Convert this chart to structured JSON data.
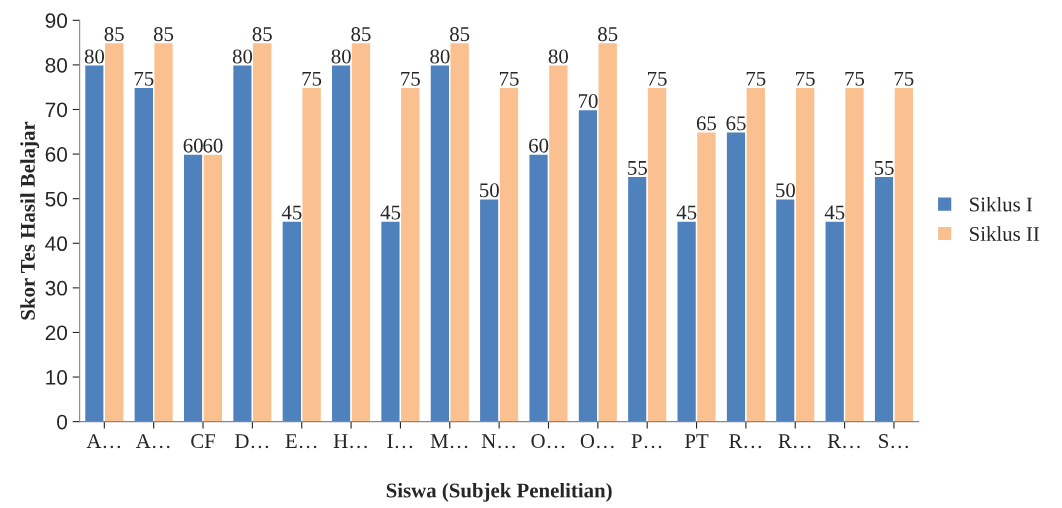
{
  "chart_data": {
    "type": "bar",
    "xlabel": "Siswa (Subjek Penelitian)",
    "ylabel": "Skor Tes Hasil Belajar",
    "categories": [
      "A…",
      "A…",
      "CF",
      "D…",
      "E…",
      "H…",
      "I…",
      "M…",
      "N…",
      "O…",
      "O…",
      "P…",
      "PT",
      "R…",
      "R…",
      "R…",
      "S…"
    ],
    "series": [
      {
        "name": "Siklus I",
        "color": "#4f81bd",
        "values": [
          80,
          75,
          60,
          80,
          45,
          80,
          45,
          80,
          50,
          60,
          70,
          55,
          45,
          65,
          50,
          45,
          55
        ]
      },
      {
        "name": "Siklus II",
        "color": "#fac090",
        "values": [
          85,
          85,
          60,
          85,
          75,
          85,
          75,
          85,
          75,
          80,
          85,
          75,
          65,
          75,
          75,
          75,
          75
        ]
      }
    ],
    "ylim": [
      0,
      90
    ],
    "yticks": [
      0,
      10,
      20,
      30,
      40,
      50,
      60,
      70,
      80,
      90
    ],
    "data_labels": true,
    "grid": false,
    "legend": "right"
  }
}
